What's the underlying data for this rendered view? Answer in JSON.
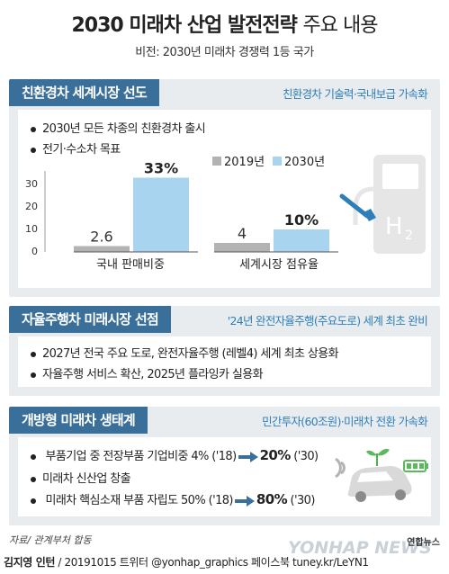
{
  "title_bold": "2030 미래차 산업 발전전략",
  "title_light": "주요 내용",
  "subtitle": "비전: 2030년 미래차 경쟁력 1등 국가",
  "sections": [
    {
      "header": "친환경차 세계시장 선도",
      "note": "친환경차 기술력·국내보급 가속화",
      "bullets": [
        "2030년 모든 차종의 친환경차 출시",
        "전기·수소차 목표"
      ]
    },
    {
      "header": "자율주행차 미래시장 선점",
      "note": "'24년 완전자율주행(주요도로) 세계 최초 완비",
      "bullets": [
        "2027년 전국 주요 도로, 완전자율주행 (레벨4) 세계 최초 상용화",
        "자율주행 서비스 확산, 2025년 플라잉카 실용화"
      ]
    },
    {
      "header": "개방형 미래차 생태계",
      "note": "민간투자(60조원)·미래차 전환 가속화",
      "bullets": [
        {
          "pre": "부품기업 중 전장부품 기업비중 4% ('18)",
          "to": "20%",
          "post": " ('30)"
        },
        {
          "text": "미래차 신산업 창출"
        },
        {
          "pre": "미래차 핵심소재 부품 자립도 50% ('18)",
          "to": "80%",
          "post": " ('30)"
        }
      ]
    }
  ],
  "chart_data": {
    "type": "bar",
    "categories": [
      "국내 판매비중",
      "세계시장 점유율"
    ],
    "series": [
      {
        "name": "2019년",
        "values": [
          2.6,
          4
        ],
        "labels": [
          "2.6",
          "4"
        ],
        "color": "#b3b3b3"
      },
      {
        "name": "2030년",
        "values": [
          33,
          10
        ],
        "labels": [
          "33%",
          "10%"
        ],
        "color": "#a8d4f0"
      }
    ],
    "yticks": [
      "30",
      "20",
      "10",
      "0"
    ],
    "ylim": [
      0,
      35
    ],
    "legend_position": "top-right",
    "unit": "%"
  },
  "source": "자료/ 관계부처 합동",
  "footer": {
    "author": "김지영 인턴",
    "rest": " / 20191015 트위터 @yonhap_graphics  페이스북 tuney.kr/LeYN1"
  },
  "logo": "연합뉴스",
  "watermark": "YONHAP NEWS",
  "icons": [
    "hydrogen-station-icon",
    "autonomous-car-icon",
    "sprout-icon",
    "battery-icon",
    "wifi-signal-icon"
  ]
}
